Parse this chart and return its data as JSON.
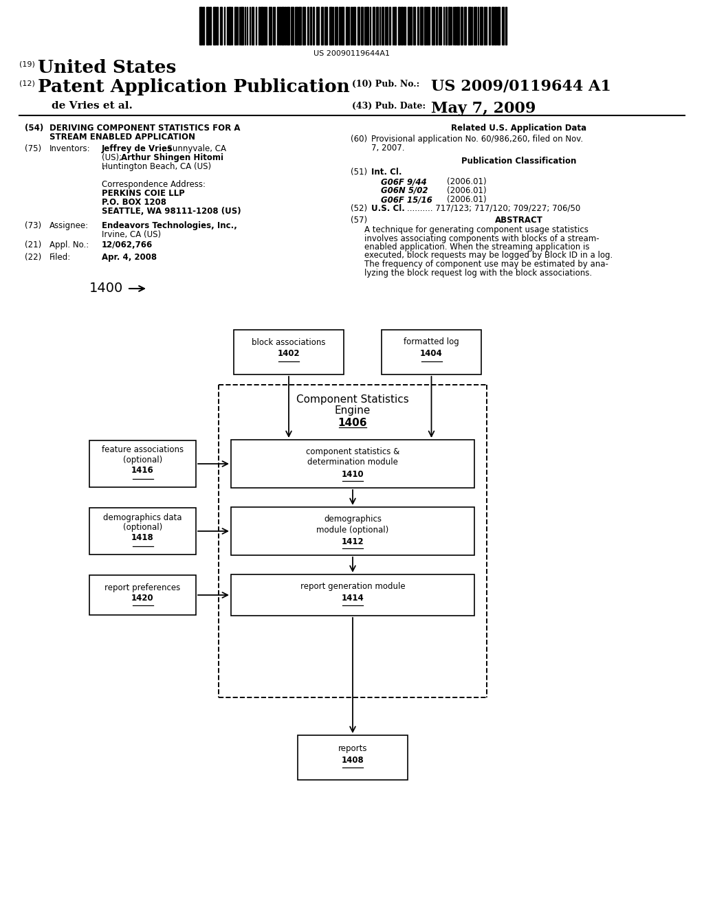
{
  "background_color": "#ffffff",
  "barcode_text": "US 20090119644A1",
  "title_19_text": "United States",
  "title_12_text": "Patent Application Publication",
  "author_line": "de Vries et al.",
  "pub_no_label": "(10) Pub. No.:",
  "pub_no_value": "US 2009/0119644 A1",
  "pub_date_label": "(43) Pub. Date:",
  "pub_date_value": "May 7, 2009",
  "field54_label_line1": "DERIVING COMPONENT STATISTICS FOR A",
  "field54_label_line2": "STREAM ENABLED APPLICATION",
  "field75_value_line1": "Jeffrey de Vries, Sunnyvale, CA",
  "field75_value_line2": "(US); Arthur Shingen Hitomi,",
  "field75_value_line3": "Huntington Beach, CA (US)",
  "corr_label": "Correspondence Address:",
  "corr_name": "PERKINS COIE LLP",
  "corr_addr1": "P.O. BOX 1208",
  "corr_addr2": "SEATTLE, WA 98111-1208 (US)",
  "field73_value_line1": "Endeavors Technologies, Inc.,",
  "field73_value_line2": "Irvine, CA (US)",
  "field21_value": "12/062,766",
  "field22_value": "Apr. 4, 2008",
  "related_header": "Related U.S. Application Data",
  "field60_value_line1": "Provisional application No. 60/986,260, filed on Nov.",
  "field60_value_line2": "7, 2007.",
  "pub_class_header": "Publication Classification",
  "int_cl_label": "Int. Cl.",
  "int_cl_entries": [
    [
      "G06F 9/44",
      "(2006.01)"
    ],
    [
      "G06N 5/02",
      "(2006.01)"
    ],
    [
      "G06F 15/16",
      "(2006.01)"
    ]
  ],
  "field52_dots": "..........",
  "field52_value": "717/123; 717/120; 709/227; 706/50",
  "abstract_label": "ABSTRACT",
  "abstract_lines": [
    "A technique for generating component usage statistics",
    "involves associating components with blocks of a stream-",
    "enabled application. When the streaming application is",
    "executed, block requests may be logged by Block ID in a log.",
    "The frequency of component use may be estimated by ana-",
    "lyzing the block request log with the block associations."
  ],
  "diagram_label": "1400"
}
